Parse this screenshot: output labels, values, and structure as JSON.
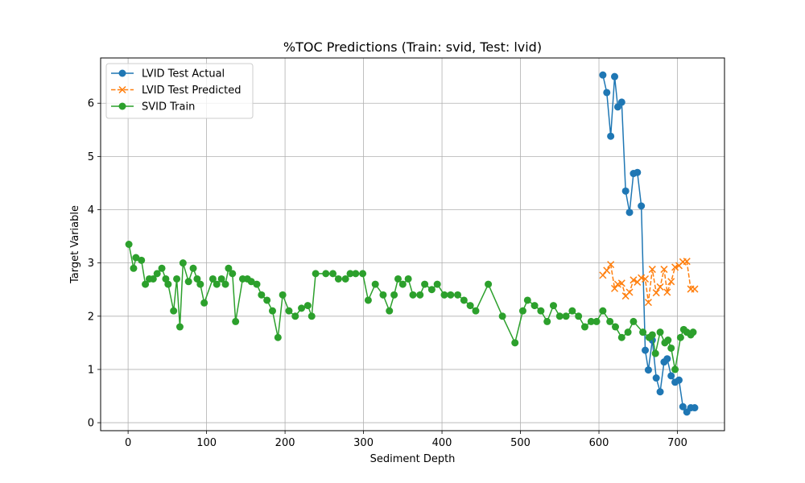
{
  "chart_data": {
    "type": "line",
    "title": "%TOC Predictions (Train: svid, Test: lvid)",
    "xlabel": "Sediment Depth",
    "ylabel": "Target Variable",
    "xlim": [
      -35,
      760
    ],
    "ylim": [
      -0.15,
      6.85
    ],
    "xticks": [
      0,
      100,
      200,
      300,
      400,
      500,
      600,
      700
    ],
    "yticks": [
      0,
      1,
      2,
      3,
      4,
      5,
      6
    ],
    "grid": true,
    "legend_position": "top-left",
    "series": [
      {
        "name": "LVID Test Actual",
        "color": "#1f77b4",
        "marker": "circle",
        "linestyle": "solid",
        "x": [
          605,
          610,
          615,
          620,
          624,
          629,
          634,
          639,
          644,
          649,
          654,
          659,
          663,
          668,
          673,
          678,
          683,
          687,
          692,
          697,
          702,
          707,
          712,
          717,
          722
        ],
        "y": [
          6.53,
          6.2,
          5.38,
          6.5,
          5.93,
          6.02,
          4.35,
          3.95,
          4.68,
          4.7,
          4.07,
          1.36,
          0.99,
          1.55,
          0.84,
          0.58,
          1.14,
          1.2,
          0.88,
          0.76,
          0.8,
          0.3,
          0.2,
          0.28,
          0.28
        ]
      },
      {
        "name": "LVID Test Predicted",
        "color": "#ff7f0e",
        "marker": "x",
        "linestyle": "dashed",
        "x": [
          605,
          610,
          615,
          620,
          624,
          629,
          634,
          639,
          644,
          649,
          654,
          659,
          663,
          668,
          673,
          678,
          683,
          687,
          692,
          697,
          702,
          707,
          712,
          717,
          722
        ],
        "y": [
          2.77,
          2.86,
          2.97,
          2.52,
          2.6,
          2.62,
          2.38,
          2.45,
          2.68,
          2.64,
          2.72,
          2.7,
          2.26,
          2.88,
          2.44,
          2.55,
          2.88,
          2.45,
          2.65,
          2.92,
          2.95,
          3.02,
          3.03,
          2.51,
          2.51
        ]
      },
      {
        "name": "SVID Train",
        "color": "#2ca02c",
        "marker": "circle",
        "linestyle": "solid",
        "x": [
          1,
          7,
          10,
          17,
          22,
          27,
          32,
          37,
          43,
          48,
          51,
          58,
          62,
          66,
          70,
          77,
          83,
          88,
          92,
          97,
          108,
          113,
          119,
          124,
          128,
          133,
          137,
          146,
          152,
          157,
          164,
          170,
          177,
          184,
          191,
          197,
          205,
          213,
          221,
          229,
          234,
          239,
          252,
          261,
          268,
          277,
          283,
          290,
          299,
          306,
          315,
          325,
          333,
          339,
          344,
          350,
          357,
          363,
          372,
          378,
          387,
          394,
          403,
          411,
          420,
          428,
          436,
          443,
          459,
          477,
          493,
          503,
          509,
          518,
          526,
          534,
          542,
          550,
          558,
          566,
          574,
          582,
          590,
          597,
          605,
          614,
          621,
          629,
          637,
          644,
          656,
          664,
          668,
          672,
          678,
          684,
          688,
          692,
          697,
          704,
          708,
          712,
          717,
          720
        ],
        "y": [
          3.35,
          2.9,
          3.1,
          3.05,
          2.6,
          2.7,
          2.7,
          2.8,
          2.9,
          2.7,
          2.6,
          2.1,
          2.7,
          1.8,
          3.0,
          2.65,
          2.9,
          2.7,
          2.6,
          2.25,
          2.7,
          2.6,
          2.7,
          2.6,
          2.9,
          2.8,
          1.9,
          2.7,
          2.7,
          2.65,
          2.6,
          2.4,
          2.3,
          2.1,
          1.6,
          2.4,
          2.1,
          2.0,
          2.15,
          2.2,
          2.0,
          2.8,
          2.8,
          2.8,
          2.7,
          2.7,
          2.8,
          2.8,
          2.8,
          2.3,
          2.6,
          2.4,
          2.1,
          2.4,
          2.7,
          2.6,
          2.7,
          2.4,
          2.4,
          2.6,
          2.5,
          2.6,
          2.4,
          2.4,
          2.4,
          2.3,
          2.2,
          2.1,
          2.6,
          2.0,
          1.5,
          2.1,
          2.3,
          2.2,
          2.1,
          1.9,
          2.2,
          2.0,
          2.0,
          2.1,
          2.0,
          1.8,
          1.9,
          1.9,
          2.1,
          1.9,
          1.8,
          1.6,
          1.7,
          1.9,
          1.7,
          1.6,
          1.65,
          1.3,
          1.7,
          1.5,
          1.55,
          1.4,
          1.0,
          1.6,
          1.75,
          1.7,
          1.65,
          1.7
        ]
      }
    ]
  }
}
